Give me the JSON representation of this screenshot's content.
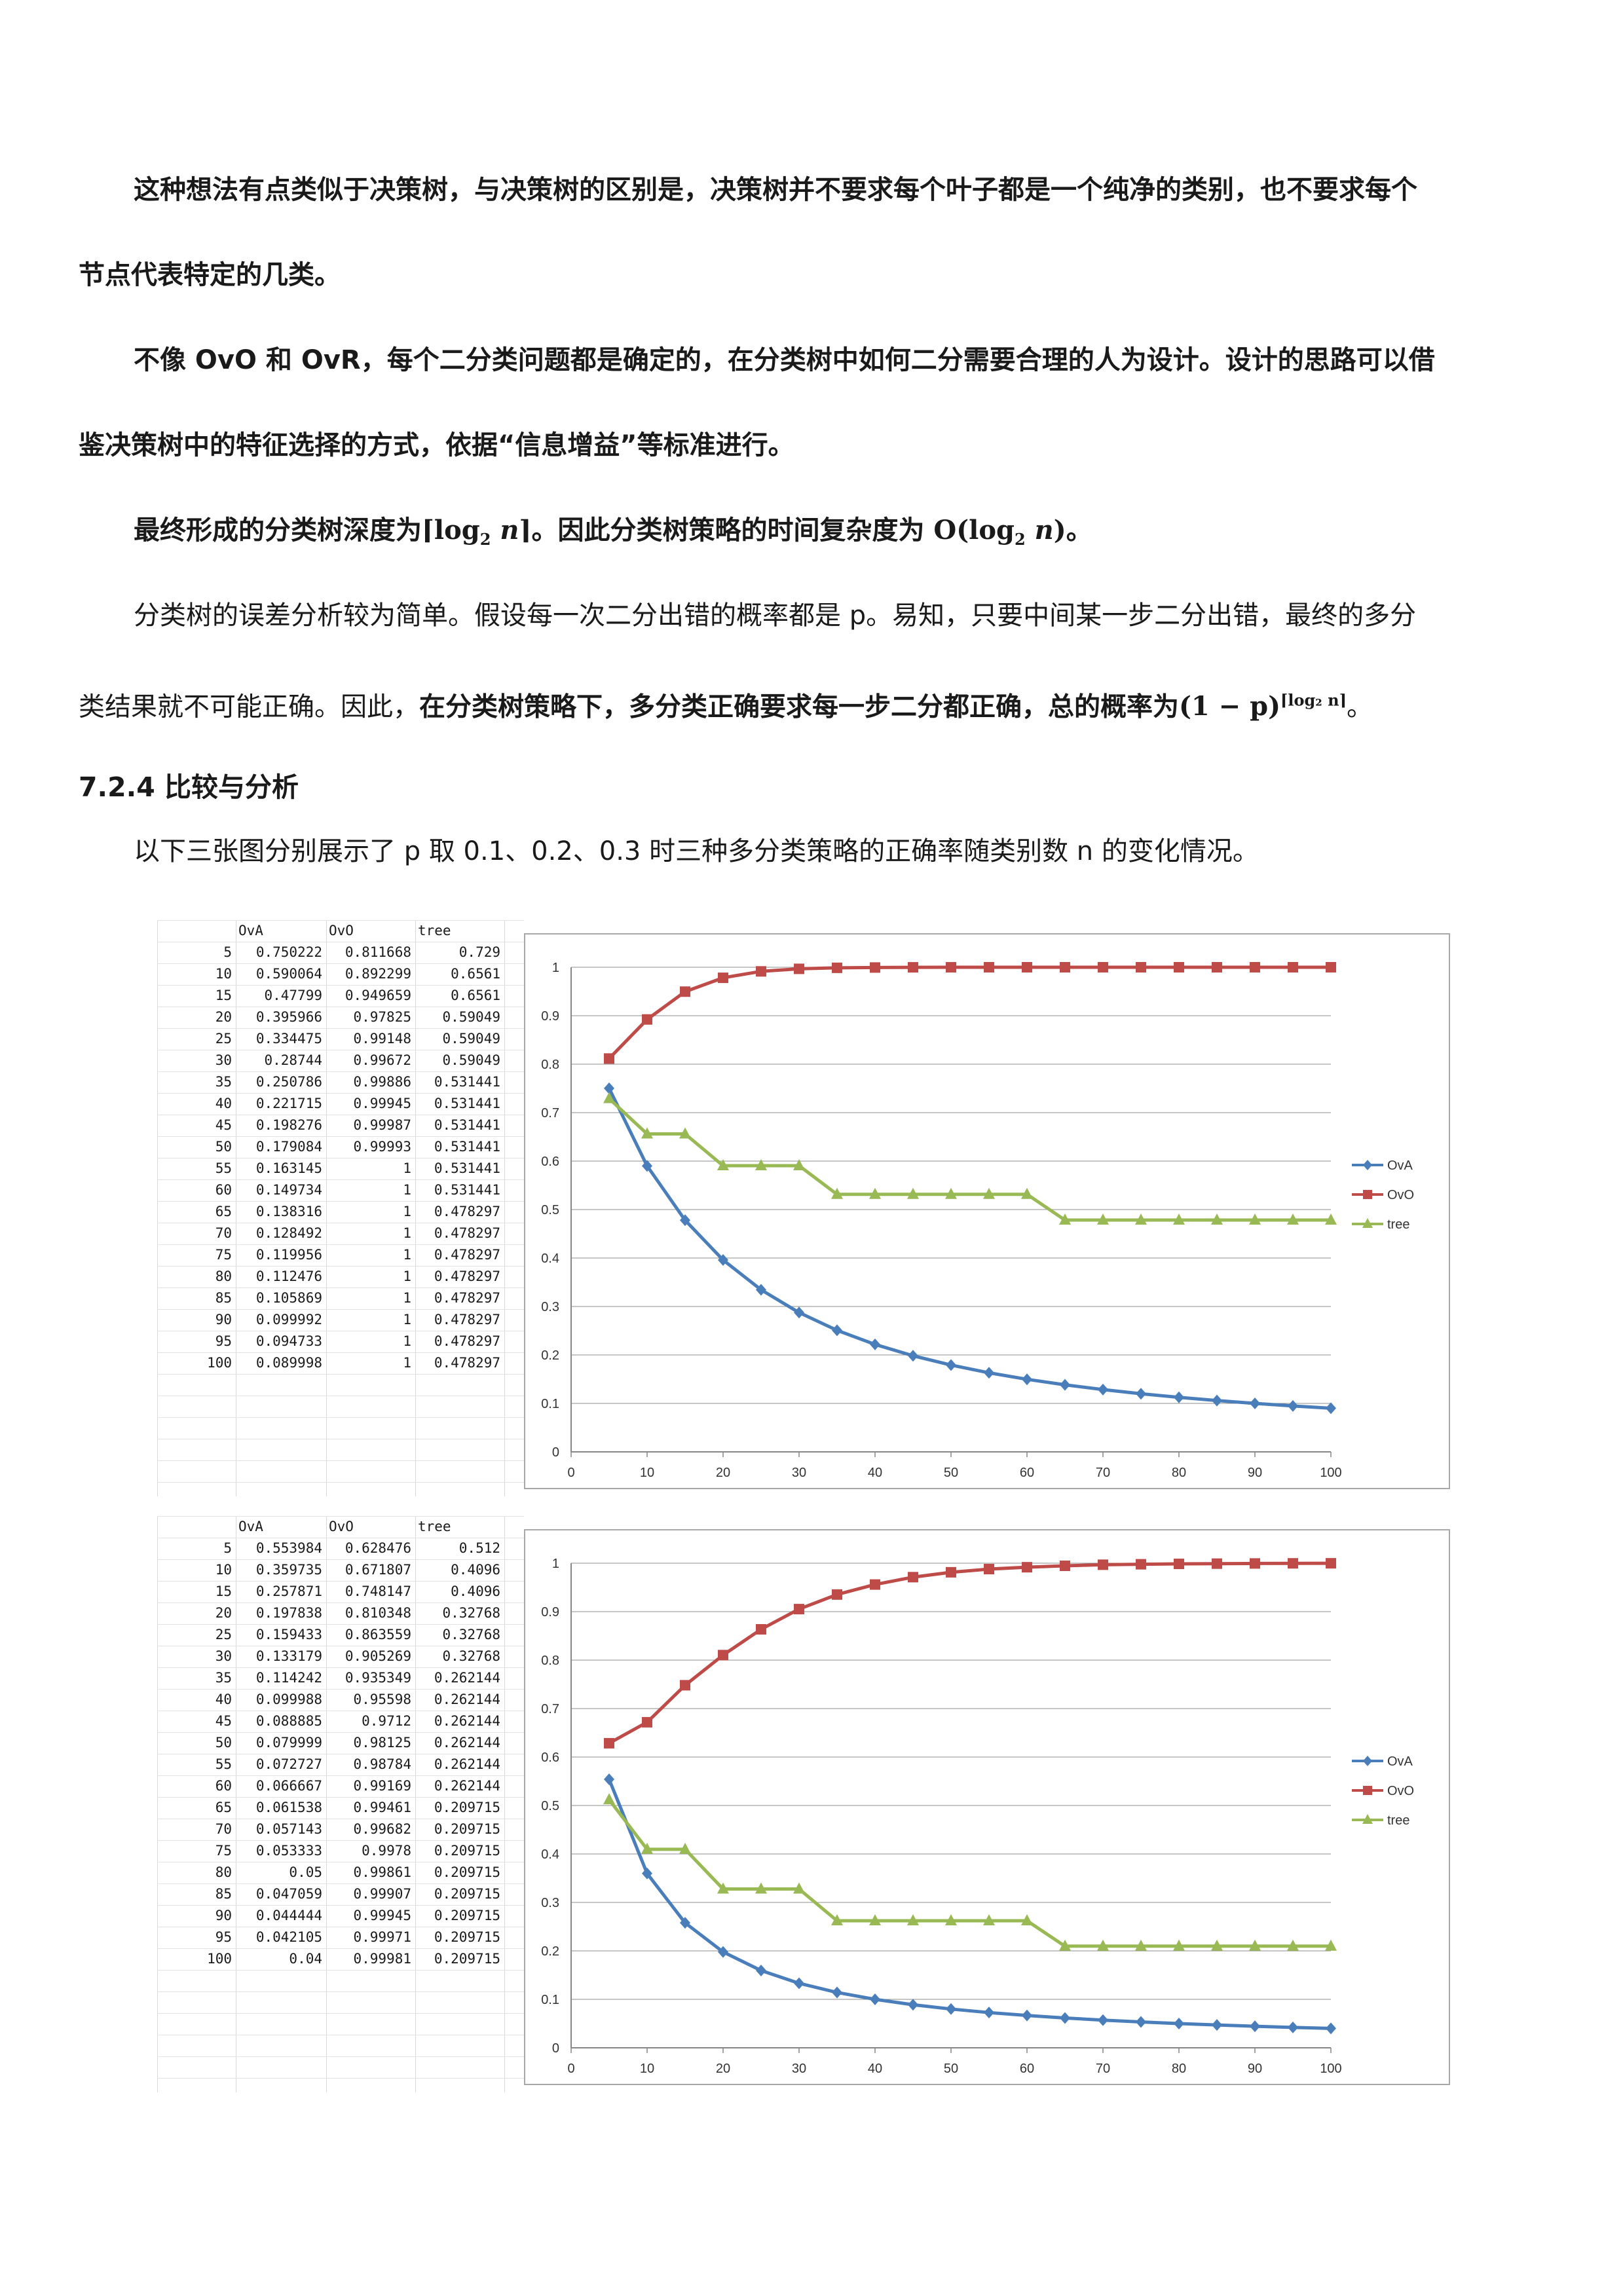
{
  "paragraphs": {
    "p1_a": "这种想法有点类似于决策树，与决策树的区别是，决策树并不要求每个叶子都是一个纯净的类别，也不要求每个",
    "p1_b": "节点代表特定的几类。",
    "p2_a": "不像 OvO 和 OvR，每个二分类问题都是确定的，在分类树中如何二分需要合理的人为设计。设计的思路可以借",
    "p2_b": "鉴决策树中的特征选择的方式，依据“信息增益”等标准进行。",
    "p3_prefix": "最终形成的分类树深度为",
    "p3_depth_open": "⌈log",
    "p3_depth_sub": "2",
    "p3_depth_n": "n",
    "p3_depth_close": "⌉",
    "p3_mid": "。因此分类树策略的时间复杂度为 ",
    "p3_O": "O(log",
    "p3_O_sub": "2",
    "p3_O_n": "n",
    "p3_O_close": ")",
    "p3_end": "。",
    "p4_a": "分类树的误差分析较为简单。假设每一次二分出错的概率都是  p。易知，只要中间某一步二分出错，最终的多分",
    "p4_b_plain": "类结果就不可能正确。因此，",
    "p4_b_bold": "在分类树策略下，多分类正确要求每一步二分都正确，总的概率为",
    "p4_formula": "(1 − p)",
    "p4_exp": "⌈log₂ n⌉",
    "p4_end": "。"
  },
  "section": {
    "title": "7.2.4  比较与分析"
  },
  "intro": "以下三张图分别展示了 p 取 0.1、0.2、0.3 时三种多分类策略的正确率随类别数 n 的变化情况。",
  "colors": {
    "OvA": "#4a7ebb",
    "OvO": "#be4b48",
    "tree": "#98b954"
  },
  "table1": {
    "headers": [
      "OvA",
      "OvO",
      "tree"
    ],
    "rows": [
      [
        "5",
        "0.750222",
        "0.811668",
        "0.729"
      ],
      [
        "10",
        "0.590064",
        "0.892299",
        "0.6561"
      ],
      [
        "15",
        "0.47799",
        "0.949659",
        "0.6561"
      ],
      [
        "20",
        "0.395966",
        "0.97825",
        "0.59049"
      ],
      [
        "25",
        "0.334475",
        "0.99148",
        "0.59049"
      ],
      [
        "30",
        "0.28744",
        "0.99672",
        "0.59049"
      ],
      [
        "35",
        "0.250786",
        "0.99886",
        "0.531441"
      ],
      [
        "40",
        "0.221715",
        "0.99945",
        "0.531441"
      ],
      [
        "45",
        "0.198276",
        "0.99987",
        "0.531441"
      ],
      [
        "50",
        "0.179084",
        "0.99993",
        "0.531441"
      ],
      [
        "55",
        "0.163145",
        "1",
        "0.531441"
      ],
      [
        "60",
        "0.149734",
        "1",
        "0.531441"
      ],
      [
        "65",
        "0.138316",
        "1",
        "0.478297"
      ],
      [
        "70",
        "0.128492",
        "1",
        "0.478297"
      ],
      [
        "75",
        "0.119956",
        "1",
        "0.478297"
      ],
      [
        "80",
        "0.112476",
        "1",
        "0.478297"
      ],
      [
        "85",
        "0.105869",
        "1",
        "0.478297"
      ],
      [
        "90",
        "0.099992",
        "1",
        "0.478297"
      ],
      [
        "95",
        "0.094733",
        "1",
        "0.478297"
      ],
      [
        "100",
        "0.089998",
        "1",
        "0.478297"
      ]
    ]
  },
  "table2": {
    "headers": [
      "OvA",
      "OvO",
      "tree"
    ],
    "rows": [
      [
        "5",
        "0.553984",
        "0.628476",
        "0.512"
      ],
      [
        "10",
        "0.359735",
        "0.671807",
        "0.4096"
      ],
      [
        "15",
        "0.257871",
        "0.748147",
        "0.4096"
      ],
      [
        "20",
        "0.197838",
        "0.810348",
        "0.32768"
      ],
      [
        "25",
        "0.159433",
        "0.863559",
        "0.32768"
      ],
      [
        "30",
        "0.133179",
        "0.905269",
        "0.32768"
      ],
      [
        "35",
        "0.114242",
        "0.935349",
        "0.262144"
      ],
      [
        "40",
        "0.099988",
        "0.95598",
        "0.262144"
      ],
      [
        "45",
        "0.088885",
        "0.9712",
        "0.262144"
      ],
      [
        "50",
        "0.079999",
        "0.98125",
        "0.262144"
      ],
      [
        "55",
        "0.072727",
        "0.98784",
        "0.262144"
      ],
      [
        "60",
        "0.066667",
        "0.99169",
        "0.262144"
      ],
      [
        "65",
        "0.061538",
        "0.99461",
        "0.209715"
      ],
      [
        "70",
        "0.057143",
        "0.99682",
        "0.209715"
      ],
      [
        "75",
        "0.053333",
        "0.9978",
        "0.209715"
      ],
      [
        "80",
        "0.05",
        "0.99861",
        "0.209715"
      ],
      [
        "85",
        "0.047059",
        "0.99907",
        "0.209715"
      ],
      [
        "90",
        "0.044444",
        "0.99945",
        "0.209715"
      ],
      [
        "95",
        "0.042105",
        "0.99971",
        "0.209715"
      ],
      [
        "100",
        "0.04",
        "0.99981",
        "0.209715"
      ]
    ]
  },
  "chart_data": [
    {
      "type": "line",
      "x": [
        5,
        10,
        15,
        20,
        25,
        30,
        35,
        40,
        45,
        50,
        55,
        60,
        65,
        70,
        75,
        80,
        85,
        90,
        95,
        100
      ],
      "xlim": [
        0,
        100
      ],
      "xticks": [
        "0",
        "10",
        "20",
        "30",
        "40",
        "50",
        "60",
        "70",
        "80",
        "90",
        "100"
      ],
      "ylim": [
        0,
        1
      ],
      "yticks": [
        "0",
        "0.1",
        "0.2",
        "0.3",
        "0.4",
        "0.5",
        "0.6",
        "0.7",
        "0.8",
        "0.9",
        "1"
      ],
      "grid": "horizontal",
      "legend": "right",
      "series": [
        {
          "name": "OvA",
          "marker": "diamond",
          "values": [
            0.750222,
            0.590064,
            0.47799,
            0.395966,
            0.334475,
            0.28744,
            0.250786,
            0.221715,
            0.198276,
            0.179084,
            0.163145,
            0.149734,
            0.138316,
            0.128492,
            0.119956,
            0.112476,
            0.105869,
            0.099992,
            0.094733,
            0.089998
          ]
        },
        {
          "name": "OvO",
          "marker": "square",
          "values": [
            0.811668,
            0.892299,
            0.949659,
            0.97825,
            0.99148,
            0.99672,
            0.99886,
            0.99945,
            0.99987,
            0.99993,
            1,
            1,
            1,
            1,
            1,
            1,
            1,
            1,
            1,
            1
          ]
        },
        {
          "name": "tree",
          "marker": "triangle",
          "values": [
            0.729,
            0.6561,
            0.6561,
            0.59049,
            0.59049,
            0.59049,
            0.531441,
            0.531441,
            0.531441,
            0.531441,
            0.531441,
            0.531441,
            0.478297,
            0.478297,
            0.478297,
            0.478297,
            0.478297,
            0.478297,
            0.478297,
            0.478297
          ]
        }
      ]
    },
    {
      "type": "line",
      "x": [
        5,
        10,
        15,
        20,
        25,
        30,
        35,
        40,
        45,
        50,
        55,
        60,
        65,
        70,
        75,
        80,
        85,
        90,
        95,
        100
      ],
      "xlim": [
        0,
        100
      ],
      "xticks": [
        "0",
        "10",
        "20",
        "30",
        "40",
        "50",
        "60",
        "70",
        "80",
        "90",
        "100"
      ],
      "ylim": [
        0,
        1
      ],
      "yticks": [
        "0",
        "0.1",
        "0.2",
        "0.3",
        "0.4",
        "0.5",
        "0.6",
        "0.7",
        "0.8",
        "0.9",
        "1"
      ],
      "grid": "horizontal",
      "legend": "right",
      "series": [
        {
          "name": "OvA",
          "marker": "diamond",
          "values": [
            0.553984,
            0.359735,
            0.257871,
            0.197838,
            0.159433,
            0.133179,
            0.114242,
            0.099988,
            0.088885,
            0.079999,
            0.072727,
            0.066667,
            0.061538,
            0.057143,
            0.053333,
            0.05,
            0.047059,
            0.044444,
            0.042105,
            0.04
          ]
        },
        {
          "name": "OvO",
          "marker": "square",
          "values": [
            0.628476,
            0.671807,
            0.748147,
            0.810348,
            0.863559,
            0.905269,
            0.935349,
            0.95598,
            0.9712,
            0.98125,
            0.98784,
            0.99169,
            0.99461,
            0.99682,
            0.9978,
            0.99861,
            0.99907,
            0.99945,
            0.99971,
            0.99981
          ]
        },
        {
          "name": "tree",
          "marker": "triangle",
          "values": [
            0.512,
            0.4096,
            0.4096,
            0.32768,
            0.32768,
            0.32768,
            0.262144,
            0.262144,
            0.262144,
            0.262144,
            0.262144,
            0.262144,
            0.209715,
            0.209715,
            0.209715,
            0.209715,
            0.209715,
            0.209715,
            0.209715,
            0.209715
          ]
        }
      ]
    }
  ]
}
